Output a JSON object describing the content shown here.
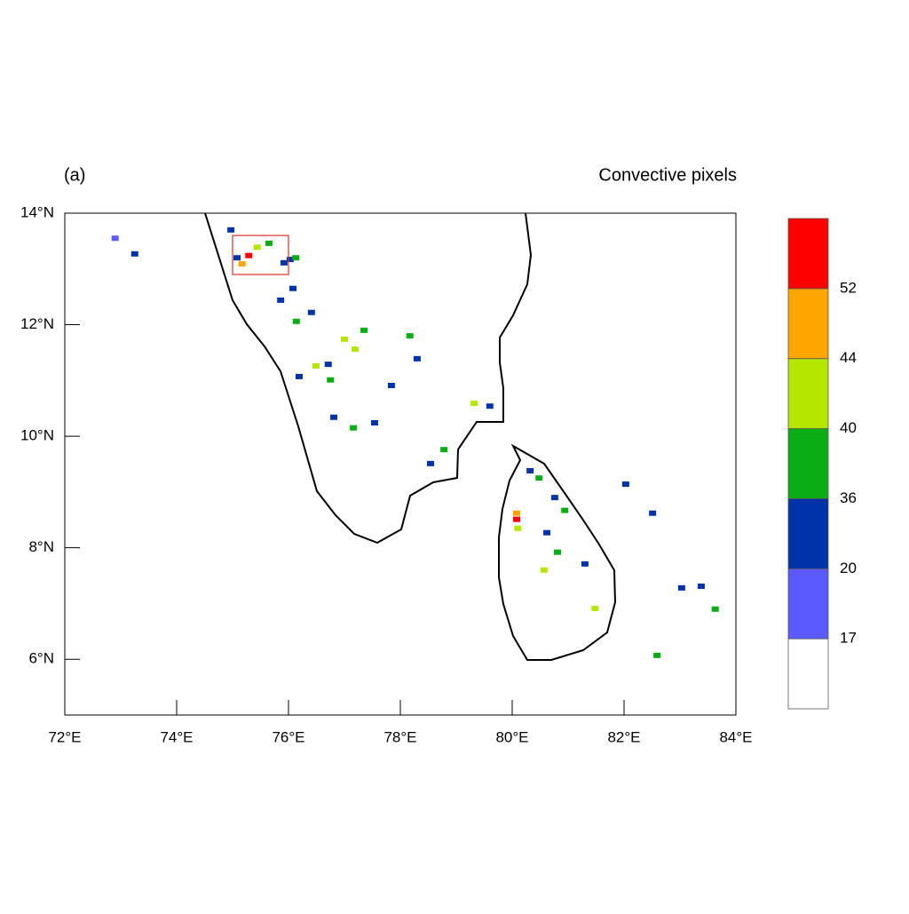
{
  "map": {
    "panel_label": "(a)",
    "title": "Convective pixels",
    "xlim": [
      72,
      84
    ],
    "ylim": [
      5,
      14
    ],
    "xticks": [
      {
        "value": 72,
        "label": "72°E"
      },
      {
        "value": 74,
        "label": "74°E"
      },
      {
        "value": 76,
        "label": "76°E"
      },
      {
        "value": 78,
        "label": "78°E"
      },
      {
        "value": 80,
        "label": "80°E"
      },
      {
        "value": 82,
        "label": "82°E"
      },
      {
        "value": 84,
        "label": "84°E"
      }
    ],
    "yticks": [
      {
        "value": 6,
        "label": "6°N"
      },
      {
        "value": 8,
        "label": "8°N"
      },
      {
        "value": 10,
        "label": "10°N"
      },
      {
        "value": 12,
        "label": "12°N"
      },
      {
        "value": 14,
        "label": "14°N"
      }
    ],
    "colorbar": {
      "levels": [
        17,
        20,
        36,
        40,
        44,
        52
      ],
      "colors": [
        "#ffffff",
        "#5a5aff",
        "#0033aa",
        "#0aad14",
        "#b4e600",
        "#ffa500",
        "#ff0000"
      ]
    },
    "highlight_box": {
      "lon": [
        75,
        76
      ],
      "lat": [
        12.9,
        13.6
      ],
      "color": "#e0302a"
    },
    "pixels": [
      {
        "lon": 75.29,
        "lat": 13.24,
        "value": 55
      },
      {
        "lon": 75.17,
        "lat": 13.09,
        "value": 48
      },
      {
        "lon": 75.44,
        "lat": 13.39,
        "value": 42
      },
      {
        "lon": 75.65,
        "lat": 13.46,
        "value": 38
      },
      {
        "lon": 75.08,
        "lat": 13.2,
        "value": 25
      },
      {
        "lon": 76.03,
        "lat": 13.17,
        "value": 25
      },
      {
        "lon": 76.13,
        "lat": 13.2,
        "value": 38
      },
      {
        "lon": 75.92,
        "lat": 13.11,
        "value": 25
      },
      {
        "lon": 72.9,
        "lat": 13.55,
        "value": 18
      },
      {
        "lon": 73.25,
        "lat": 13.27,
        "value": 25
      },
      {
        "lon": 74.97,
        "lat": 13.7,
        "value": 25
      },
      {
        "lon": 76.41,
        "lat": 12.22,
        "value": 25
      },
      {
        "lon": 76.14,
        "lat": 12.06,
        "value": 38
      },
      {
        "lon": 77.0,
        "lat": 11.74,
        "value": 42
      },
      {
        "lon": 77.35,
        "lat": 11.9,
        "value": 38
      },
      {
        "lon": 77.19,
        "lat": 11.56,
        "value": 42
      },
      {
        "lon": 76.49,
        "lat": 11.26,
        "value": 42
      },
      {
        "lon": 76.71,
        "lat": 11.29,
        "value": 25
      },
      {
        "lon": 76.19,
        "lat": 11.07,
        "value": 25
      },
      {
        "lon": 76.75,
        "lat": 11.01,
        "value": 38
      },
      {
        "lon": 78.17,
        "lat": 11.8,
        "value": 38
      },
      {
        "lon": 78.3,
        "lat": 11.39,
        "value": 25
      },
      {
        "lon": 77.84,
        "lat": 10.91,
        "value": 25
      },
      {
        "lon": 76.81,
        "lat": 10.34,
        "value": 25
      },
      {
        "lon": 77.16,
        "lat": 10.15,
        "value": 38
      },
      {
        "lon": 77.54,
        "lat": 10.24,
        "value": 25
      },
      {
        "lon": 79.32,
        "lat": 10.59,
        "value": 42
      },
      {
        "lon": 79.6,
        "lat": 10.54,
        "value": 25
      },
      {
        "lon": 78.78,
        "lat": 9.76,
        "value": 38
      },
      {
        "lon": 78.54,
        "lat": 9.51,
        "value": 25
      },
      {
        "lon": 76.08,
        "lat": 12.65,
        "value": 25
      },
      {
        "lon": 75.86,
        "lat": 12.44,
        "value": 25
      },
      {
        "lon": 80.08,
        "lat": 8.51,
        "value": 55
      },
      {
        "lon": 80.08,
        "lat": 8.62,
        "value": 48
      },
      {
        "lon": 80.1,
        "lat": 8.35,
        "value": 42
      },
      {
        "lon": 80.32,
        "lat": 9.38,
        "value": 25
      },
      {
        "lon": 80.48,
        "lat": 9.25,
        "value": 38
      },
      {
        "lon": 80.76,
        "lat": 8.9,
        "value": 25
      },
      {
        "lon": 80.94,
        "lat": 8.67,
        "value": 38
      },
      {
        "lon": 80.62,
        "lat": 8.27,
        "value": 25
      },
      {
        "lon": 80.81,
        "lat": 7.92,
        "value": 38
      },
      {
        "lon": 80.57,
        "lat": 7.6,
        "value": 42
      },
      {
        "lon": 81.48,
        "lat": 6.91,
        "value": 42
      },
      {
        "lon": 81.3,
        "lat": 7.71,
        "value": 25
      },
      {
        "lon": 83.03,
        "lat": 7.28,
        "value": 25
      },
      {
        "lon": 83.38,
        "lat": 7.31,
        "value": 25
      },
      {
        "lon": 82.59,
        "lat": 6.07,
        "value": 38
      },
      {
        "lon": 82.03,
        "lat": 9.14,
        "value": 25
      },
      {
        "lon": 82.51,
        "lat": 8.62,
        "value": 25
      },
      {
        "lon": 83.63,
        "lat": 6.9,
        "value": 38
      }
    ]
  }
}
